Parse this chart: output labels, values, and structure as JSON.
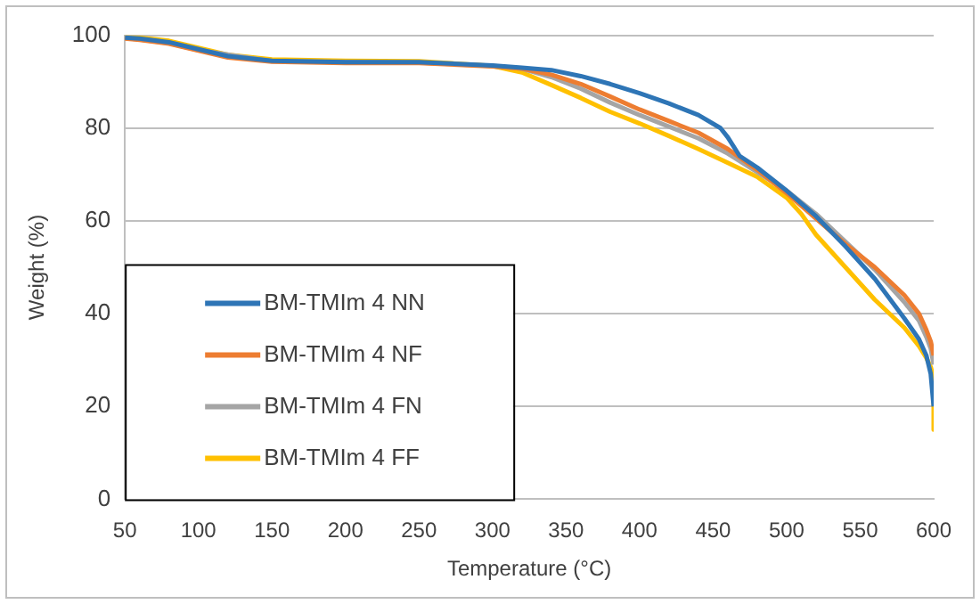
{
  "chart_data": {
    "type": "line",
    "xlabel": "Temperature (°C)",
    "ylabel": "Weight (%)",
    "xlim": [
      50,
      600
    ],
    "xticks": [
      50,
      100,
      150,
      200,
      250,
      300,
      350,
      400,
      450,
      500,
      550,
      600
    ],
    "ylim": [
      0,
      100
    ],
    "yticks": [
      0,
      20,
      40,
      60,
      80,
      100
    ],
    "grid": "y",
    "legend": "bottom left",
    "marker": "none",
    "line_style": "solid",
    "series": [
      {
        "name": "BM-TMIm 4 NN",
        "color": "#2e75b6",
        "x": [
          50,
          60,
          80,
          100,
          120,
          150,
          200,
          250,
          300,
          320,
          340,
          360,
          380,
          400,
          420,
          440,
          455,
          460,
          468,
          480,
          500,
          520,
          540,
          560,
          580,
          590,
          595,
          598,
          600
        ],
        "values": [
          99.5,
          99.3,
          98.5,
          97,
          95.5,
          94.5,
          94.2,
          94.2,
          93.5,
          93,
          92.5,
          91.2,
          89.5,
          87.5,
          85.3,
          82.8,
          80,
          78,
          74,
          71.5,
          66.5,
          61,
          54.5,
          47.5,
          39,
          34.5,
          31,
          27,
          20
        ]
      },
      {
        "name": "BM-TMIm 4 NF",
        "color": "#ed7d31",
        "x": [
          50,
          60,
          80,
          100,
          120,
          150,
          200,
          250,
          300,
          320,
          340,
          360,
          380,
          400,
          420,
          440,
          460,
          480,
          500,
          520,
          540,
          560,
          580,
          590,
          595,
          598,
          600
        ],
        "values": [
          99.3,
          99,
          98.2,
          96.7,
          95.2,
          94.3,
          94,
          94,
          93.3,
          92.8,
          91.5,
          89.5,
          86.8,
          84,
          81.5,
          79,
          75.5,
          71,
          66,
          60.5,
          55,
          50,
          44,
          40,
          36.5,
          34,
          31
        ]
      },
      {
        "name": "BM-TMIm 4 FN",
        "color": "#a5a5a5",
        "x": [
          50,
          60,
          80,
          100,
          150,
          250,
          300,
          320,
          340,
          360,
          380,
          400,
          420,
          440,
          460,
          480,
          500,
          520,
          540,
          560,
          580,
          590,
          595,
          598,
          600
        ],
        "values": [
          99.4,
          99.1,
          98.3,
          96.8,
          94.4,
          94.1,
          93.4,
          92.8,
          91,
          88.5,
          85.5,
          82.8,
          80.3,
          77.8,
          74.5,
          70.5,
          66.5,
          61.5,
          55.5,
          49.5,
          42.5,
          38.5,
          35,
          32.5,
          29
        ]
      },
      {
        "name": "BM-TMIm 4 FF",
        "color": "#ffc000",
        "x": [
          50,
          60,
          80,
          100,
          120,
          150,
          200,
          250,
          300,
          320,
          340,
          360,
          380,
          400,
          420,
          440,
          460,
          480,
          500,
          510,
          520,
          540,
          560,
          580,
          590,
          595,
          598,
          600,
          600
        ],
        "values": [
          99.6,
          99.5,
          98.8,
          97.3,
          95.8,
          94.8,
          94.5,
          94.4,
          93.4,
          92,
          89.3,
          86.5,
          83.5,
          81,
          78.3,
          75.5,
          72.5,
          69.5,
          65,
          61.5,
          57,
          50,
          43,
          37,
          33,
          30.5,
          28.5,
          26,
          15
        ]
      }
    ]
  }
}
